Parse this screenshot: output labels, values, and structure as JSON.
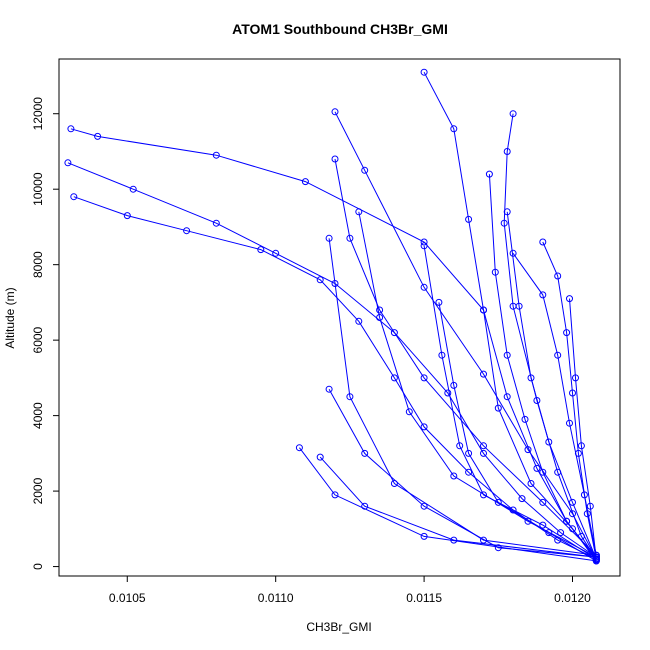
{
  "chart_data": {
    "type": "line",
    "title": "ATOM1 Southbound CH3Br_GMI",
    "xlabel": "CH3Br_GMI",
    "ylabel": "Altitude (m)",
    "xlim": [
      0.01027,
      0.01216
    ],
    "ylim": [
      -250,
      13450
    ],
    "x_ticks": [
      0.0105,
      0.011,
      0.0115,
      0.012
    ],
    "x_tick_labels": [
      "0.0105",
      "0.0110",
      "0.0115",
      "0.0120"
    ],
    "y_ticks": [
      0,
      2000,
      4000,
      6000,
      8000,
      10000,
      12000
    ],
    "y_tick_labels": [
      "0",
      "2000",
      "4000",
      "6000",
      "8000",
      "10000",
      "12000"
    ],
    "grid": false,
    "legend": "none",
    "marker": "open-circle",
    "colors": {
      "series": "#0000ff"
    },
    "series": [
      {
        "x": [
          0.01208,
          0.01195,
          0.0118,
          0.01165,
          0.0115,
          0.0114,
          0.01128,
          0.01115,
          0.01095,
          0.0107,
          0.0105,
          0.01032
        ],
        "y": [
          200,
          700,
          1500,
          2500,
          3700,
          5000,
          6500,
          7600,
          8400,
          8900,
          9300,
          9800
        ]
      },
      {
        "x": [
          0.01208,
          0.01196,
          0.01183,
          0.0117,
          0.01158,
          0.0114,
          0.0112,
          0.011,
          0.0108,
          0.01052,
          0.0103
        ],
        "y": [
          250,
          900,
          1800,
          3000,
          4600,
          6200,
          7500,
          8300,
          9100,
          10000,
          10700
        ]
      },
      {
        "x": [
          0.01208,
          0.01198,
          0.01188,
          0.01178,
          0.0117,
          0.0115,
          0.0111,
          0.0108,
          0.0104,
          0.01031
        ],
        "y": [
          200,
          1200,
          2600,
          4500,
          6800,
          8600,
          10200,
          10900,
          11400,
          11600
        ]
      },
      {
        "x": [
          0.01208,
          0.012,
          0.01186,
          0.01175,
          0.0117,
          0.01165,
          0.0116,
          0.0115
        ],
        "y": [
          150,
          1000,
          2200,
          4200,
          6800,
          9200,
          11600,
          13100
        ]
      },
      {
        "x": [
          0.01208,
          0.01203,
          0.01195,
          0.01188,
          0.0118,
          0.01177,
          0.01178,
          0.0118
        ],
        "y": [
          200,
          800,
          2500,
          4400,
          6900,
          9100,
          11000,
          12000
        ]
      },
      {
        "x": [
          0.01208,
          0.012,
          0.01185,
          0.0117,
          0.0115,
          0.0113,
          0.0112
        ],
        "y": [
          200,
          1400,
          3100,
          5100,
          7400,
          10500,
          12050
        ]
      },
      {
        "x": [
          0.01208,
          0.0119,
          0.0117,
          0.0115,
          0.01135,
          0.01125,
          0.0112
        ],
        "y": [
          300,
          1700,
          3200,
          5000,
          6800,
          8700,
          10800
        ]
      },
      {
        "x": [
          0.01208,
          0.0116,
          0.0113,
          0.01115
        ],
        "y": [
          250,
          700,
          1600,
          2900
        ]
      },
      {
        "x": [
          0.01208,
          0.0115,
          0.0112,
          0.01108
        ],
        "y": [
          150,
          800,
          1900,
          3150
        ]
      },
      {
        "x": [
          0.01208,
          0.01205,
          0.01202,
          0.012,
          0.01198,
          0.01195,
          0.0119
        ],
        "y": [
          200,
          1400,
          3000,
          4600,
          6200,
          7700,
          8600
        ]
      },
      {
        "x": [
          0.01208,
          0.01204,
          0.01199,
          0.01195,
          0.0119,
          0.0118
        ],
        "y": [
          300,
          1900,
          3800,
          5600,
          7200,
          8300
        ]
      },
      {
        "x": [
          0.01208,
          0.0119,
          0.0117,
          0.01162,
          0.01156,
          0.0115
        ],
        "y": [
          200,
          1100,
          1900,
          3200,
          5600,
          8500
        ]
      },
      {
        "x": [
          0.01208,
          0.01185,
          0.0116,
          0.01145,
          0.01135,
          0.01128
        ],
        "y": [
          250,
          1200,
          2400,
          4100,
          6600,
          9400
        ]
      },
      {
        "x": [
          0.01208,
          0.01192,
          0.01175,
          0.01165,
          0.0116,
          0.01155
        ],
        "y": [
          150,
          900,
          1700,
          3000,
          4800,
          7000
        ]
      },
      {
        "x": [
          0.01208,
          0.01198,
          0.0119,
          0.01184,
          0.01178,
          0.01174,
          0.01172
        ],
        "y": [
          200,
          1200,
          2500,
          3900,
          5600,
          7800,
          10400
        ]
      },
      {
        "x": [
          0.01208,
          0.0117,
          0.0114,
          0.01125,
          0.01118
        ],
        "y": [
          300,
          700,
          2200,
          4500,
          8700
        ]
      },
      {
        "x": [
          0.01208,
          0.01175,
          0.0115,
          0.0113,
          0.01118
        ],
        "y": [
          250,
          500,
          1600,
          3000,
          4700
        ]
      },
      {
        "x": [
          0.01208,
          0.012,
          0.01192,
          0.01186,
          0.01182,
          0.01178
        ],
        "y": [
          200,
          1700,
          3300,
          5000,
          6900,
          9400
        ]
      },
      {
        "x": [
          0.01208,
          0.01206,
          0.01203,
          0.01201,
          0.01199
        ],
        "y": [
          180,
          1600,
          3200,
          5000,
          7100
        ]
      }
    ]
  }
}
